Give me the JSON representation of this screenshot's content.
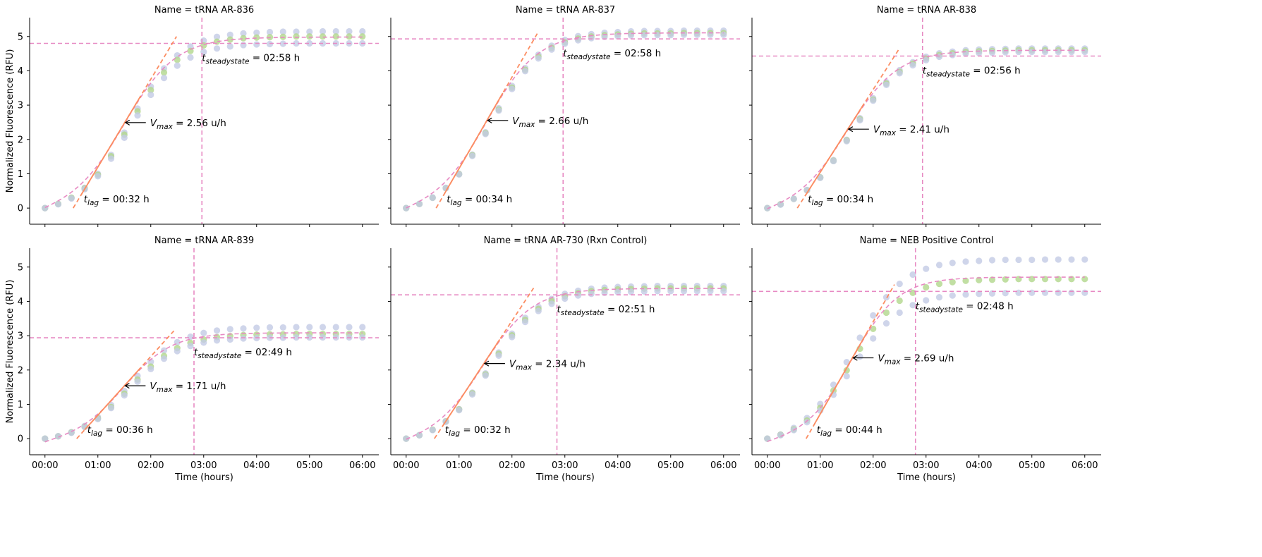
{
  "annotation_symbols": {
    "vmax": [
      "V",
      "max"
    ],
    "t_lag": [
      "t",
      "lag"
    ],
    "t_steadystate": [
      "t",
      "steadystate"
    ],
    "equals": " =  "
  },
  "colors": {
    "replicate_blue": "#c3cbe5",
    "replicate_green": "#b2d78c",
    "fit_curve": "#e78ac3",
    "tangent_line": "#fc8d62",
    "reference_lines": "#e78ac3"
  },
  "chart_data": [
    {
      "type": "scatter",
      "title": "Name = tRNA AR-836",
      "ylabel": "Normalized Fluorescence (RFU)",
      "y_ticks": [
        "0",
        "1",
        "2",
        "3",
        "4",
        "5"
      ],
      "x": [
        0,
        0.25,
        0.5,
        0.75,
        1,
        1.25,
        1.5,
        1.75,
        2,
        2.25,
        2.5,
        2.75,
        3,
        3.25,
        3.5,
        3.75,
        4,
        4.25,
        4.5,
        4.75,
        5,
        5.25,
        5.5,
        5.75,
        6
      ],
      "ylim": [
        -0.47,
        5.55
      ],
      "steady_state_level": 4.8,
      "annotations": {
        "vmax": "2.56 u/h",
        "t_lag": "00:32 h",
        "t_steadystate": "02:58 h"
      },
      "series": [
        {
          "values": [
            0,
            0.12,
            0.3,
            0.59,
            1.0,
            1.55,
            2.2,
            2.9,
            3.54,
            4.07,
            4.45,
            4.71,
            4.88,
            4.99,
            5.05,
            5.09,
            5.11,
            5.13,
            5.14,
            5.14,
            5.14,
            5.15,
            5.15,
            5.15,
            5.15
          ]
        },
        {
          "values": [
            0,
            0.12,
            0.3,
            0.57,
            0.97,
            1.51,
            2.14,
            2.82,
            3.44,
            3.95,
            4.32,
            4.58,
            4.74,
            4.85,
            4.91,
            4.95,
            4.97,
            4.98,
            4.99,
            5.0,
            5.0,
            5.0,
            5.0,
            5.0,
            5.0
          ]
        },
        {
          "values": [
            0,
            0.11,
            0.28,
            0.55,
            0.93,
            1.44,
            2.05,
            2.7,
            3.3,
            3.79,
            4.15,
            4.39,
            4.55,
            4.65,
            4.71,
            4.75,
            4.77,
            4.78,
            4.79,
            4.8,
            4.8,
            4.8,
            4.8,
            4.8,
            4.8
          ]
        }
      ]
    },
    {
      "type": "scatter",
      "title": "Name = tRNA AR-837",
      "x": [
        0,
        0.25,
        0.5,
        0.75,
        1,
        1.25,
        1.5,
        1.75,
        2,
        2.25,
        2.5,
        2.75,
        3,
        3.25,
        3.5,
        3.75,
        4,
        4.25,
        4.5,
        4.75,
        5,
        5.25,
        5.5,
        5.75,
        6
      ],
      "ylim": [
        -0.47,
        5.55
      ],
      "steady_state_level": 4.93,
      "annotations": {
        "vmax": "2.66 u/h",
        "t_lag": "00:34 h",
        "t_steadystate": "02:58 h"
      },
      "series": [
        {
          "values": [
            0,
            0.12,
            0.31,
            0.59,
            1.0,
            1.56,
            2.21,
            2.91,
            3.56,
            4.08,
            4.47,
            4.73,
            4.9,
            5.01,
            5.07,
            5.11,
            5.13,
            5.15,
            5.16,
            5.16,
            5.16,
            5.17,
            5.17,
            5.17,
            5.17
          ]
        },
        {
          "values": [
            0,
            0.12,
            0.3,
            0.58,
            0.99,
            1.54,
            2.18,
            2.87,
            3.51,
            4.03,
            4.41,
            4.67,
            4.83,
            4.94,
            5.0,
            5.04,
            5.06,
            5.08,
            5.09,
            5.09,
            5.09,
            5.1,
            5.1,
            5.1,
            5.1
          ]
        },
        {
          "values": [
            0,
            0.12,
            0.3,
            0.58,
            0.98,
            1.52,
            2.16,
            2.84,
            3.47,
            3.99,
            4.36,
            4.62,
            4.79,
            4.89,
            4.95,
            4.99,
            5.01,
            5.03,
            5.04,
            5.04,
            5.04,
            5.05,
            5.05,
            5.05,
            5.05
          ]
        }
      ]
    },
    {
      "type": "scatter",
      "title": "Name = tRNA AR-838",
      "x": [
        0,
        0.25,
        0.5,
        0.75,
        1,
        1.25,
        1.5,
        1.75,
        2,
        2.25,
        2.5,
        2.75,
        3,
        3.25,
        3.5,
        3.75,
        4,
        4.25,
        4.5,
        4.75,
        5,
        5.25,
        5.5,
        5.75,
        6
      ],
      "ylim": [
        -0.47,
        5.55
      ],
      "steady_state_level": 4.43,
      "annotations": {
        "vmax": "2.41 u/h",
        "t_lag": "00:34 h",
        "t_steadystate": "02:56 h"
      },
      "series": [
        {
          "values": [
            0,
            0.11,
            0.27,
            0.53,
            0.9,
            1.4,
            1.99,
            2.62,
            3.2,
            3.67,
            4.02,
            4.25,
            4.41,
            4.51,
            4.56,
            4.6,
            4.62,
            4.63,
            4.64,
            4.65,
            4.65,
            4.65,
            4.65,
            4.65,
            4.65
          ]
        },
        {
          "values": [
            0,
            0.11,
            0.27,
            0.52,
            0.89,
            1.38,
            1.97,
            2.59,
            3.16,
            3.63,
            3.97,
            4.21,
            4.36,
            4.46,
            4.51,
            4.55,
            4.57,
            4.58,
            4.59,
            4.6,
            4.6,
            4.6,
            4.6,
            4.6,
            4.6
          ]
        },
        {
          "values": [
            0,
            0.1,
            0.27,
            0.52,
            0.88,
            1.37,
            1.95,
            2.56,
            3.13,
            3.59,
            3.93,
            4.16,
            4.31,
            4.41,
            4.46,
            4.5,
            4.52,
            4.53,
            4.54,
            4.55,
            4.55,
            4.55,
            4.55,
            4.55,
            4.55
          ]
        }
      ]
    },
    {
      "type": "scatter",
      "title": "Name = tRNA AR-839",
      "xlabel": "Time (hours)",
      "ylabel": "Normalized Fluorescence (RFU)",
      "x_ticks": [
        "00:00",
        "01:00",
        "02:00",
        "03:00",
        "04:00",
        "05:00",
        "06:00"
      ],
      "y_ticks": [
        "0",
        "1",
        "2",
        "3",
        "4",
        "5"
      ],
      "x": [
        0,
        0.25,
        0.5,
        0.75,
        1,
        1.25,
        1.5,
        1.75,
        2,
        2.25,
        2.5,
        2.75,
        3,
        3.25,
        3.5,
        3.75,
        4,
        4.25,
        4.5,
        4.75,
        5,
        5.25,
        5.5,
        5.75,
        6
      ],
      "ylim": [
        -0.47,
        5.55
      ],
      "steady_state_level": 2.94,
      "annotations": {
        "vmax": "1.71 u/h",
        "t_lag": "00:36 h",
        "t_steadystate": "02:49 h"
      },
      "series": [
        {
          "values": [
            0,
            0.07,
            0.19,
            0.37,
            0.63,
            0.98,
            1.39,
            1.83,
            2.24,
            2.57,
            2.81,
            2.97,
            3.08,
            3.15,
            3.19,
            3.21,
            3.23,
            3.24,
            3.24,
            3.25,
            3.25,
            3.25,
            3.25,
            3.25,
            3.25
          ]
        },
        {
          "values": [
            0,
            0.07,
            0.18,
            0.35,
            0.59,
            0.92,
            1.31,
            1.72,
            2.1,
            2.41,
            2.64,
            2.79,
            2.89,
            2.96,
            2.99,
            3.02,
            3.03,
            3.04,
            3.04,
            3.05,
            3.05,
            3.05,
            3.05,
            3.05,
            3.05
          ]
        },
        {
          "values": [
            0,
            0.07,
            0.17,
            0.34,
            0.57,
            0.89,
            1.26,
            1.66,
            2.03,
            2.33,
            2.55,
            2.7,
            2.8,
            2.86,
            2.89,
            2.92,
            2.93,
            2.94,
            2.94,
            2.95,
            2.95,
            2.95,
            2.95,
            2.95,
            2.95
          ]
        }
      ]
    },
    {
      "type": "scatter",
      "title": "Name = tRNA AR-730 (Rxn Control)",
      "xlabel": "Time (hours)",
      "x_ticks": [
        "00:00",
        "01:00",
        "02:00",
        "03:00",
        "04:00",
        "05:00",
        "06:00"
      ],
      "x": [
        0,
        0.25,
        0.5,
        0.75,
        1,
        1.25,
        1.5,
        1.75,
        2,
        2.25,
        2.5,
        2.75,
        3,
        3.25,
        3.5,
        3.75,
        4,
        4.25,
        4.5,
        4.75,
        5,
        5.25,
        5.5,
        5.75,
        6
      ],
      "ylim": [
        -0.47,
        5.55
      ],
      "steady_state_level": 4.19,
      "annotations": {
        "vmax": "2.34 u/h",
        "t_lag": "00:32 h",
        "t_steadystate": "02:51 h"
      },
      "series": [
        {
          "values": [
            0,
            0.1,
            0.26,
            0.51,
            0.86,
            1.34,
            1.9,
            2.51,
            3.06,
            3.52,
            3.84,
            4.07,
            4.22,
            4.31,
            4.37,
            4.4,
            4.42,
            4.43,
            4.44,
            4.45,
            4.45,
            4.45,
            4.45,
            4.45,
            4.45
          ]
        },
        {
          "values": [
            0,
            0.1,
            0.26,
            0.5,
            0.85,
            1.32,
            1.87,
            2.47,
            3.01,
            3.46,
            3.78,
            4.01,
            4.15,
            4.24,
            4.3,
            4.33,
            4.35,
            4.36,
            4.37,
            4.38,
            4.38,
            4.38,
            4.38,
            4.38,
            4.38
          ]
        },
        {
          "values": [
            0,
            0.1,
            0.25,
            0.49,
            0.83,
            1.29,
            1.84,
            2.42,
            2.96,
            3.4,
            3.72,
            3.93,
            4.08,
            4.17,
            4.22,
            4.25,
            4.27,
            4.28,
            4.29,
            4.3,
            4.3,
            4.3,
            4.3,
            4.3,
            4.3
          ]
        }
      ]
    },
    {
      "type": "scatter",
      "title": "Name = NEB Positive Control",
      "xlabel": "Time (hours)",
      "x_ticks": [
        "00:00",
        "01:00",
        "02:00",
        "03:00",
        "04:00",
        "05:00",
        "06:00"
      ],
      "x": [
        0,
        0.25,
        0.5,
        0.75,
        1,
        1.25,
        1.5,
        1.75,
        2,
        2.25,
        2.5,
        2.75,
        3,
        3.25,
        3.5,
        3.75,
        4,
        4.25,
        4.5,
        4.75,
        5,
        5.25,
        5.5,
        5.75,
        6
      ],
      "ylim": [
        -0.47,
        5.55
      ],
      "steady_state_level": 4.29,
      "annotations": {
        "vmax": "2.69 u/h",
        "t_lag": "00:44 h",
        "t_steadystate": "02:48 h"
      },
      "series": [
        {
          "values": [
            0,
            0.12,
            0.31,
            0.6,
            1.01,
            1.57,
            2.23,
            2.94,
            3.59,
            4.12,
            4.51,
            4.78,
            4.95,
            5.06,
            5.12,
            5.16,
            5.18,
            5.2,
            5.21,
            5.21,
            5.21,
            5.22,
            5.22,
            5.22,
            5.22
          ]
        },
        {
          "values": [
            0,
            0.11,
            0.27,
            0.53,
            0.9,
            1.4,
            1.99,
            2.62,
            3.2,
            3.67,
            4.02,
            4.25,
            4.41,
            4.51,
            4.56,
            4.6,
            4.62,
            4.63,
            4.64,
            4.65,
            4.65,
            4.65,
            4.65,
            4.65,
            4.65
          ]
        },
        {
          "values": [
            0,
            0.1,
            0.25,
            0.48,
            0.82,
            1.28,
            1.82,
            2.39,
            2.92,
            3.36,
            3.67,
            3.89,
            4.03,
            4.12,
            4.17,
            4.2,
            4.22,
            4.23,
            4.24,
            4.25,
            4.25,
            4.25,
            4.25,
            4.25,
            4.25
          ]
        }
      ]
    }
  ]
}
